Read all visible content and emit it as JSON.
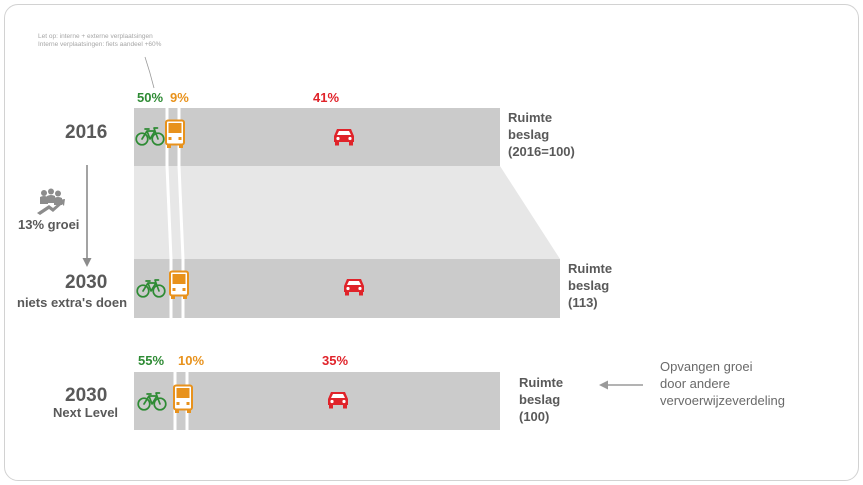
{
  "note": {
    "line1": "Let op: interne + externe verplaatsingen",
    "line2": "Interne verplaatsingen: fiets aandeel +60%"
  },
  "row_2016": {
    "year": "2016",
    "shares": {
      "bike": "50%",
      "bus": "9%",
      "car": "41%"
    },
    "space": {
      "line1": "Ruimte",
      "line2": "beslag",
      "line3": "(2016=100)"
    }
  },
  "growth": {
    "label": "13% groei"
  },
  "row_2030_base": {
    "year": "2030",
    "subtitle": "niets extra's doen",
    "space": {
      "line1": "Ruimte",
      "line2": "beslag",
      "line3": "(113)"
    }
  },
  "row_2030_next": {
    "year": "2030",
    "subtitle": "Next Level",
    "shares": {
      "bike": "55%",
      "bus": "10%",
      "car": "35%"
    },
    "space": {
      "line1": "Ruimte",
      "line2": "beslag",
      "line3": "(100)"
    },
    "annotation": {
      "line1": "Opvangen groei",
      "line2": "door andere",
      "line3": "vervoerwijzeverdeling"
    }
  },
  "icons": {
    "bike": "bicycle-icon",
    "bus": "bus-icon",
    "car": "car-icon",
    "growth": "people-growth-icon",
    "arrow_down": "arrow-down-icon",
    "arrow_left": "arrow-left-icon"
  },
  "colors": {
    "bike": "#2e8b34",
    "bus": "#e8921c",
    "car": "#e0232a",
    "bar": "#cbcbcb",
    "expansion": "#e7e7e7",
    "text": "#555555"
  }
}
